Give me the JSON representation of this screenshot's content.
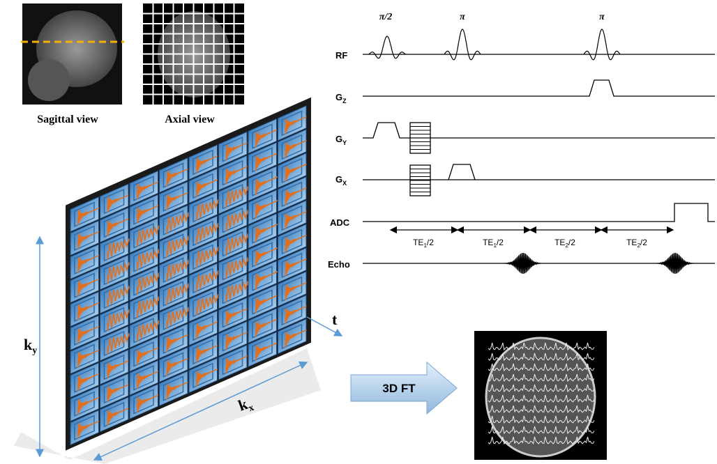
{
  "images": {
    "sagittal": "Sagittal view",
    "axial": "Axial view"
  },
  "sequence": {
    "rf_pulses": [
      "π/2",
      "π",
      "π"
    ],
    "rows": [
      {
        "label": "RF"
      },
      {
        "label": "G",
        "sub": "Z"
      },
      {
        "label": "G",
        "sub": "Y"
      },
      {
        "label": "G",
        "sub": "X"
      },
      {
        "label": "ADC"
      },
      {
        "label": "Echo"
      }
    ],
    "intervals": [
      {
        "label": "TE",
        "sub": "1",
        "suffix": "/2"
      },
      {
        "label": "TE",
        "sub": "1",
        "suffix": "/2"
      },
      {
        "label": "TE",
        "sub": "2",
        "suffix": "/2"
      },
      {
        "label": "TE",
        "sub": "2",
        "suffix": "/2"
      }
    ]
  },
  "kspace": {
    "t": "t",
    "ky": {
      "label": "k",
      "sub": "y"
    },
    "kx": {
      "label": "k",
      "sub": "x"
    }
  },
  "transform": "3D FT"
}
